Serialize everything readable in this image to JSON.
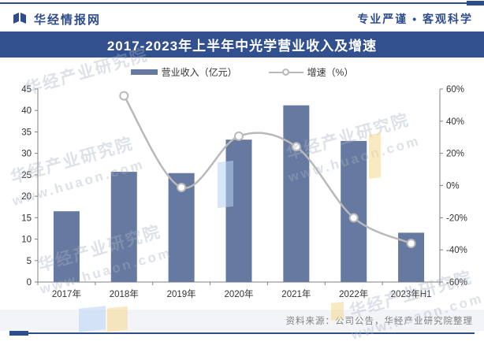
{
  "header": {
    "brand": "华经情报网",
    "slogan": "专业严谨 • 客观科学"
  },
  "title": "2017-2023年上半年中光学营业收入及增速",
  "legend": {
    "bar_label": "营业收入（亿元）",
    "line_label": "增速（%）"
  },
  "source": "资料来源：公司公告，华经产业研究院整理",
  "watermark": {
    "line1": "华经产业研究院",
    "line2": "www.huaon.com"
  },
  "colors": {
    "bar": "#6679A0",
    "line": "#B9B9B9",
    "banner": "#33508E",
    "brand": "#2E4D8C",
    "axis": "#808080",
    "label": "#333333",
    "source_text": "#808080"
  },
  "chart_data": {
    "type": "bar+line",
    "title": "2017-2023年上半年中光学营业收入及增速",
    "categories": [
      "2017年",
      "2018年",
      "2019年",
      "2020年",
      "2021年",
      "2022年",
      "2023年H1"
    ],
    "series": [
      {
        "name": "营业收入（亿元）",
        "type": "bar",
        "axis": "left",
        "values": [
          16.5,
          25.7,
          25.4,
          33.2,
          41.2,
          32.9,
          11.5
        ]
      },
      {
        "name": "增速（%）",
        "type": "line",
        "axis": "right",
        "values": [
          null,
          55.8,
          -1.2,
          30.7,
          24.1,
          -20.1,
          -36.0
        ]
      }
    ],
    "left_axis": {
      "min": 0,
      "max": 45,
      "step": 5,
      "suffix": ""
    },
    "right_axis": {
      "min": -60,
      "max": 60,
      "step": 20,
      "suffix": "%"
    },
    "grid": false,
    "legend_position": "top"
  }
}
